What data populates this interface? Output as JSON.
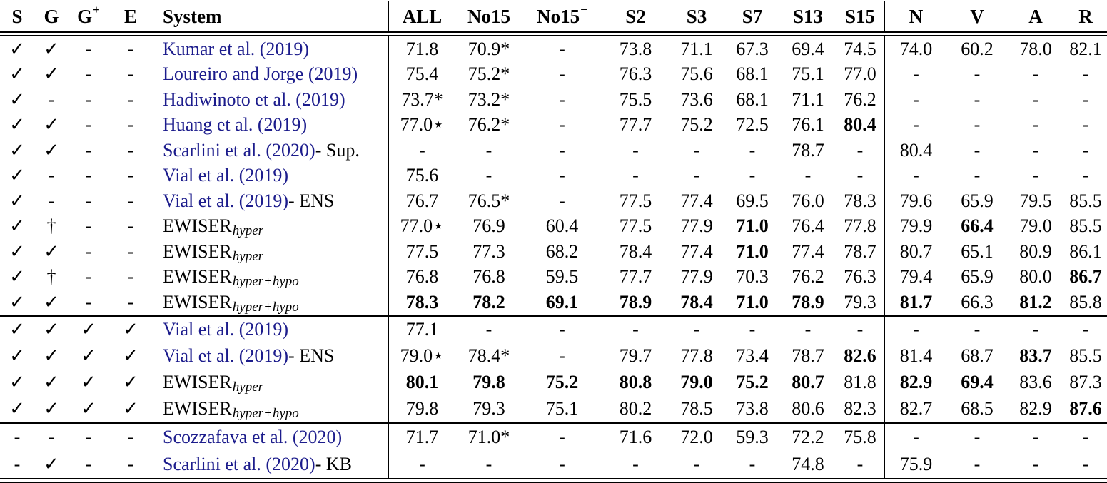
{
  "symbols": {
    "check": "✓",
    "dash": "-",
    "dagger": "†"
  },
  "header": {
    "flag_cols": [
      {
        "label": "S",
        "sup": ""
      },
      {
        "label": "G",
        "sup": ""
      },
      {
        "label": "G",
        "sup": "+"
      },
      {
        "label": "E",
        "sup": ""
      }
    ],
    "system_col": "System",
    "value_cols": [
      {
        "label": "ALL",
        "sup": ""
      },
      {
        "label": "No15",
        "sup": ""
      },
      {
        "label": "No15",
        "sup": "−"
      },
      {
        "label": "S2",
        "sup": ""
      },
      {
        "label": "S3",
        "sup": ""
      },
      {
        "label": "S7",
        "sup": ""
      },
      {
        "label": "S13",
        "sup": ""
      },
      {
        "label": "S15",
        "sup": ""
      },
      {
        "label": "N",
        "sup": ""
      },
      {
        "label": "V",
        "sup": ""
      },
      {
        "label": "A",
        "sup": ""
      },
      {
        "label": "R",
        "sup": ""
      }
    ]
  },
  "sections": [
    {
      "rows": [
        {
          "flags": [
            "check",
            "check",
            "dash",
            "dash"
          ],
          "system": {
            "cite": "Kumar et al. (2019)",
            "suffix": "",
            "name": "",
            "sub": ""
          },
          "values": [
            "71.8",
            "70.9*",
            "-",
            "73.8",
            "71.1",
            "67.3",
            "69.4",
            "74.5",
            "74.0",
            "60.2",
            "78.0",
            "82.1"
          ]
        },
        {
          "flags": [
            "check",
            "check",
            "dash",
            "dash"
          ],
          "system": {
            "cite": "Loureiro and Jorge (2019)",
            "suffix": "",
            "name": "",
            "sub": ""
          },
          "values": [
            "75.4",
            "75.2*",
            "-",
            "76.3",
            "75.6",
            "68.1",
            "75.1",
            "77.0",
            "-",
            "-",
            "-",
            "-"
          ]
        },
        {
          "flags": [
            "check",
            "dash",
            "dash",
            "dash"
          ],
          "system": {
            "cite": "Hadiwinoto et al. (2019)",
            "suffix": "",
            "name": "",
            "sub": ""
          },
          "values": [
            "73.7*",
            "73.2*",
            "-",
            "75.5",
            "73.6",
            "68.1",
            "71.1",
            "76.2",
            "-",
            "-",
            "-",
            "-"
          ]
        },
        {
          "flags": [
            "check",
            "check",
            "dash",
            "dash"
          ],
          "system": {
            "cite": "Huang et al. (2019)",
            "suffix": "",
            "name": "",
            "sub": ""
          },
          "values": [
            "77.0⋆",
            "76.2*",
            "-",
            "77.7",
            "75.2",
            "72.5",
            "76.1",
            {
              "v": "80.4",
              "b": true
            },
            "-",
            "-",
            "-",
            "-"
          ]
        },
        {
          "flags": [
            "check",
            "check",
            "dash",
            "dash"
          ],
          "system": {
            "cite": "Scarlini et al. (2020)",
            "suffix": " - Sup.",
            "name": "",
            "sub": ""
          },
          "values": [
            "-",
            "-",
            "-",
            "-",
            "-",
            "-",
            "78.7",
            "-",
            "80.4",
            "-",
            "-",
            "-"
          ]
        },
        {
          "flags": [
            "check",
            "dash",
            "dash",
            "dash"
          ],
          "system": {
            "cite": "Vial et al. (2019)",
            "suffix": "",
            "name": "",
            "sub": ""
          },
          "values": [
            "75.6",
            "-",
            "-",
            "-",
            "-",
            "-",
            "-",
            "-",
            "-",
            "-",
            "-",
            "-"
          ]
        },
        {
          "flags": [
            "check",
            "dash",
            "dash",
            "dash"
          ],
          "system": {
            "cite": "Vial et al. (2019)",
            "suffix": " - ENS",
            "name": "",
            "sub": ""
          },
          "values": [
            "76.7",
            "76.5*",
            "-",
            "77.5",
            "77.4",
            "69.5",
            "76.0",
            "78.3",
            "79.6",
            "65.9",
            "79.5",
            "85.5"
          ]
        },
        {
          "flags": [
            "check",
            "dagger",
            "dash",
            "dash"
          ],
          "system": {
            "cite": "",
            "suffix": "",
            "name": "EWISER",
            "sub": "hyper"
          },
          "values": [
            "77.0⋆",
            "76.9",
            "60.4",
            "77.5",
            "77.9",
            {
              "v": "71.0",
              "b": true
            },
            "76.4",
            "77.8",
            "79.9",
            {
              "v": "66.4",
              "b": true
            },
            "79.0",
            "85.5"
          ]
        },
        {
          "flags": [
            "check",
            "check",
            "dash",
            "dash"
          ],
          "system": {
            "cite": "",
            "suffix": "",
            "name": "EWISER",
            "sub": "hyper"
          },
          "values": [
            "77.5",
            "77.3",
            "68.2",
            "78.4",
            "77.4",
            {
              "v": "71.0",
              "b": true
            },
            "77.4",
            "78.7",
            "80.7",
            "65.1",
            "80.9",
            "86.1"
          ]
        },
        {
          "flags": [
            "check",
            "dagger",
            "dash",
            "dash"
          ],
          "system": {
            "cite": "",
            "suffix": "",
            "name": "EWISER",
            "sub": "hyper+hypo"
          },
          "values": [
            "76.8",
            "76.8",
            "59.5",
            "77.7",
            "77.9",
            "70.3",
            "76.2",
            "76.3",
            "79.4",
            "65.9",
            "80.0",
            {
              "v": "86.7",
              "b": true
            }
          ]
        },
        {
          "flags": [
            "check",
            "check",
            "dash",
            "dash"
          ],
          "system": {
            "cite": "",
            "suffix": "",
            "name": "EWISER",
            "sub": "hyper+hypo"
          },
          "values": [
            {
              "v": "78.3",
              "b": true
            },
            {
              "v": "78.2",
              "b": true
            },
            {
              "v": "69.1",
              "b": true
            },
            {
              "v": "78.9",
              "b": true
            },
            {
              "v": "78.4",
              "b": true
            },
            {
              "v": "71.0",
              "b": true
            },
            {
              "v": "78.9",
              "b": true
            },
            "79.3",
            {
              "v": "81.7",
              "b": true
            },
            "66.3",
            {
              "v": "81.2",
              "b": true
            },
            "85.8"
          ]
        }
      ]
    },
    {
      "rows": [
        {
          "flags": [
            "check",
            "check",
            "check",
            "check"
          ],
          "system": {
            "cite": "Vial et al. (2019)",
            "suffix": "",
            "name": "",
            "sub": ""
          },
          "values": [
            "77.1",
            "-",
            "-",
            "-",
            "-",
            "-",
            "-",
            "-",
            "-",
            "-",
            "-",
            "-"
          ]
        },
        {
          "flags": [
            "check",
            "check",
            "check",
            "check"
          ],
          "system": {
            "cite": "Vial et al. (2019)",
            "suffix": " - ENS",
            "name": "",
            "sub": ""
          },
          "values": [
            "79.0⋆",
            "78.4*",
            "-",
            "79.7",
            "77.8",
            "73.4",
            "78.7",
            {
              "v": "82.6",
              "b": true
            },
            "81.4",
            "68.7",
            {
              "v": "83.7",
              "b": true
            },
            "85.5"
          ]
        },
        {
          "flags": [
            "check",
            "check",
            "check",
            "check"
          ],
          "system": {
            "cite": "",
            "suffix": "",
            "name": "EWISER",
            "sub": "hyper"
          },
          "values": [
            {
              "v": "80.1",
              "b": true
            },
            {
              "v": "79.8",
              "b": true
            },
            {
              "v": "75.2",
              "b": true
            },
            {
              "v": "80.8",
              "b": true
            },
            {
              "v": "79.0",
              "b": true
            },
            {
              "v": "75.2",
              "b": true
            },
            {
              "v": "80.7",
              "b": true
            },
            "81.8",
            {
              "v": "82.9",
              "b": true
            },
            {
              "v": "69.4",
              "b": true
            },
            "83.6",
            "87.3"
          ]
        },
        {
          "flags": [
            "check",
            "check",
            "check",
            "check"
          ],
          "system": {
            "cite": "",
            "suffix": "",
            "name": "EWISER",
            "sub": "hyper+hypo"
          },
          "values": [
            "79.8",
            "79.3",
            "75.1",
            "80.2",
            "78.5",
            "73.8",
            "80.6",
            "82.3",
            "82.7",
            "68.5",
            "82.9",
            {
              "v": "87.6",
              "b": true
            }
          ]
        }
      ]
    },
    {
      "rows": [
        {
          "flags": [
            "dash",
            "dash",
            "dash",
            "dash"
          ],
          "system": {
            "cite": "Scozzafava et al. (2020)",
            "suffix": "",
            "name": "",
            "sub": ""
          },
          "values": [
            "71.7",
            "71.0*",
            "-",
            "71.6",
            "72.0",
            "59.3",
            "72.2",
            "75.8",
            "-",
            "-",
            "-",
            "-"
          ]
        },
        {
          "flags": [
            "dash",
            "check",
            "dash",
            "dash"
          ],
          "system": {
            "cite": "Scarlini et al. (2020)",
            "suffix": " - KB",
            "name": "",
            "sub": ""
          },
          "values": [
            "-",
            "-",
            "-",
            "-",
            "-",
            "-",
            "74.8",
            "-",
            "75.9",
            "-",
            "-",
            "-"
          ]
        }
      ]
    }
  ]
}
